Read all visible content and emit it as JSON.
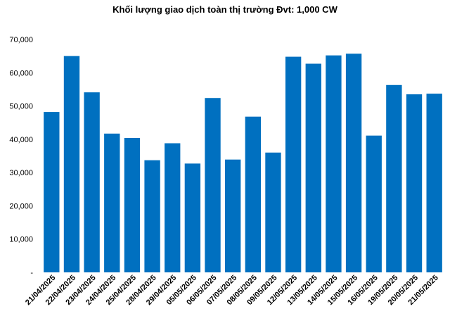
{
  "chart_data": {
    "type": "bar",
    "title": "Khối lượng giao dịch toàn thị trường Đvt: 1,000 CW",
    "xlabel": "",
    "ylabel": "",
    "ylim": [
      0,
      70000
    ],
    "yticks": [
      0,
      10000,
      20000,
      30000,
      40000,
      50000,
      60000,
      70000
    ],
    "ytick_labels": [
      "-",
      "10,000",
      "20,000",
      "30,000",
      "40,000",
      "50,000",
      "60,000",
      "70,000"
    ],
    "grid": false,
    "bar_color": "#0070c0",
    "categories": [
      "21/04/2025",
      "22/04/2025",
      "23/04/2025",
      "24/04/2025",
      "25/04/2025",
      "28/04/2025",
      "29/04/2025",
      "05/05/2025",
      "06/05/2025",
      "07/05/2025",
      "08/05/2025",
      "09/05/2025",
      "12/05/2025",
      "13/05/2025",
      "14/05/2025",
      "15/05/2025",
      "16/05/2025",
      "19/05/2025",
      "20/05/2025",
      "21/05/2025"
    ],
    "values": [
      48200,
      65000,
      54100,
      41700,
      40400,
      33700,
      38800,
      32700,
      52400,
      33900,
      46800,
      36000,
      64800,
      62700,
      65200,
      65700,
      41100,
      56300,
      53500,
      53700
    ]
  }
}
